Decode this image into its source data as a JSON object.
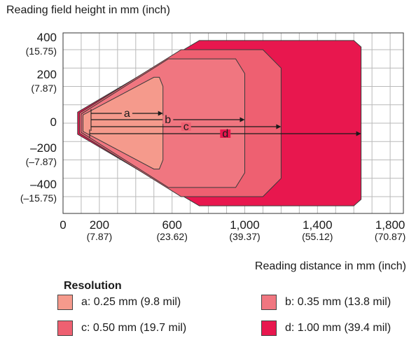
{
  "chart_data": {
    "type": "area",
    "title": "Reading field height in mm (inch)",
    "xlabel": "Reading distance in mm (inch)",
    "x_ticks": [
      {
        "value": 0,
        "label": "0",
        "sub": ""
      },
      {
        "value": 200,
        "label": "200",
        "sub": "(7.87)"
      },
      {
        "value": 600,
        "label": "600",
        "sub": "(23.62)"
      },
      {
        "value": 1000,
        "label": "1,000",
        "sub": "(39.37)"
      },
      {
        "value": 1400,
        "label": "1,400",
        "sub": "(55.12)"
      },
      {
        "value": 1800,
        "label": "1,800",
        "sub": "(70.87)"
      }
    ],
    "y_ticks": [
      {
        "value": 400,
        "label": "400",
        "sub": "(15.75)"
      },
      {
        "value": 200,
        "label": "200",
        "sub": "(7.87)"
      },
      {
        "value": 0,
        "label": "0",
        "sub": ""
      },
      {
        "value": -200,
        "label": "–200",
        "sub": "(–7.87)"
      },
      {
        "value": -400,
        "label": "–400",
        "sub": "(–15.75)"
      }
    ],
    "xlim": [
      0,
      1800
    ],
    "ylim": [
      -500,
      500
    ],
    "grid": true,
    "legend_title": "Resolution",
    "series": [
      {
        "key": "d",
        "name": "d: 1.00 mm (39.4 mil)",
        "color": "#e8174e",
        "max_distance": 1640,
        "outline": [
          [
            80,
            -60
          ],
          [
            80,
            60
          ],
          [
            750,
            450
          ],
          [
            1600,
            450
          ],
          [
            1640,
            415
          ],
          [
            1640,
            -415
          ],
          [
            1600,
            -450
          ],
          [
            750,
            -450
          ]
        ]
      },
      {
        "key": "c",
        "name": "c: 0.50 mm (19.7 mil)",
        "color": "#ee6071",
        "max_distance": 1200,
        "outline": [
          [
            90,
            -55
          ],
          [
            90,
            55
          ],
          [
            650,
            400
          ],
          [
            1100,
            400
          ],
          [
            1200,
            300
          ],
          [
            1200,
            -300
          ],
          [
            1100,
            -400
          ],
          [
            650,
            -400
          ]
        ]
      },
      {
        "key": "b",
        "name": "b: 0.35 mm (13.8 mil)",
        "color": "#f07680",
        "max_distance": 1000,
        "outline": [
          [
            100,
            -50
          ],
          [
            100,
            50
          ],
          [
            580,
            350
          ],
          [
            950,
            350
          ],
          [
            1000,
            270
          ],
          [
            1000,
            -270
          ],
          [
            950,
            -350
          ],
          [
            580,
            -350
          ]
        ]
      },
      {
        "key": "a",
        "name": "a: 0.25 mm (9.8 mil)",
        "color": "#f59a8c",
        "max_distance": 550,
        "outline": [
          [
            110,
            -45
          ],
          [
            110,
            45
          ],
          [
            500,
            250
          ],
          [
            530,
            250
          ],
          [
            550,
            200
          ],
          [
            550,
            -200
          ],
          [
            530,
            -250
          ],
          [
            500,
            -250
          ]
        ]
      }
    ],
    "arrow_labels": [
      "a",
      "b",
      "c",
      "d"
    ]
  }
}
